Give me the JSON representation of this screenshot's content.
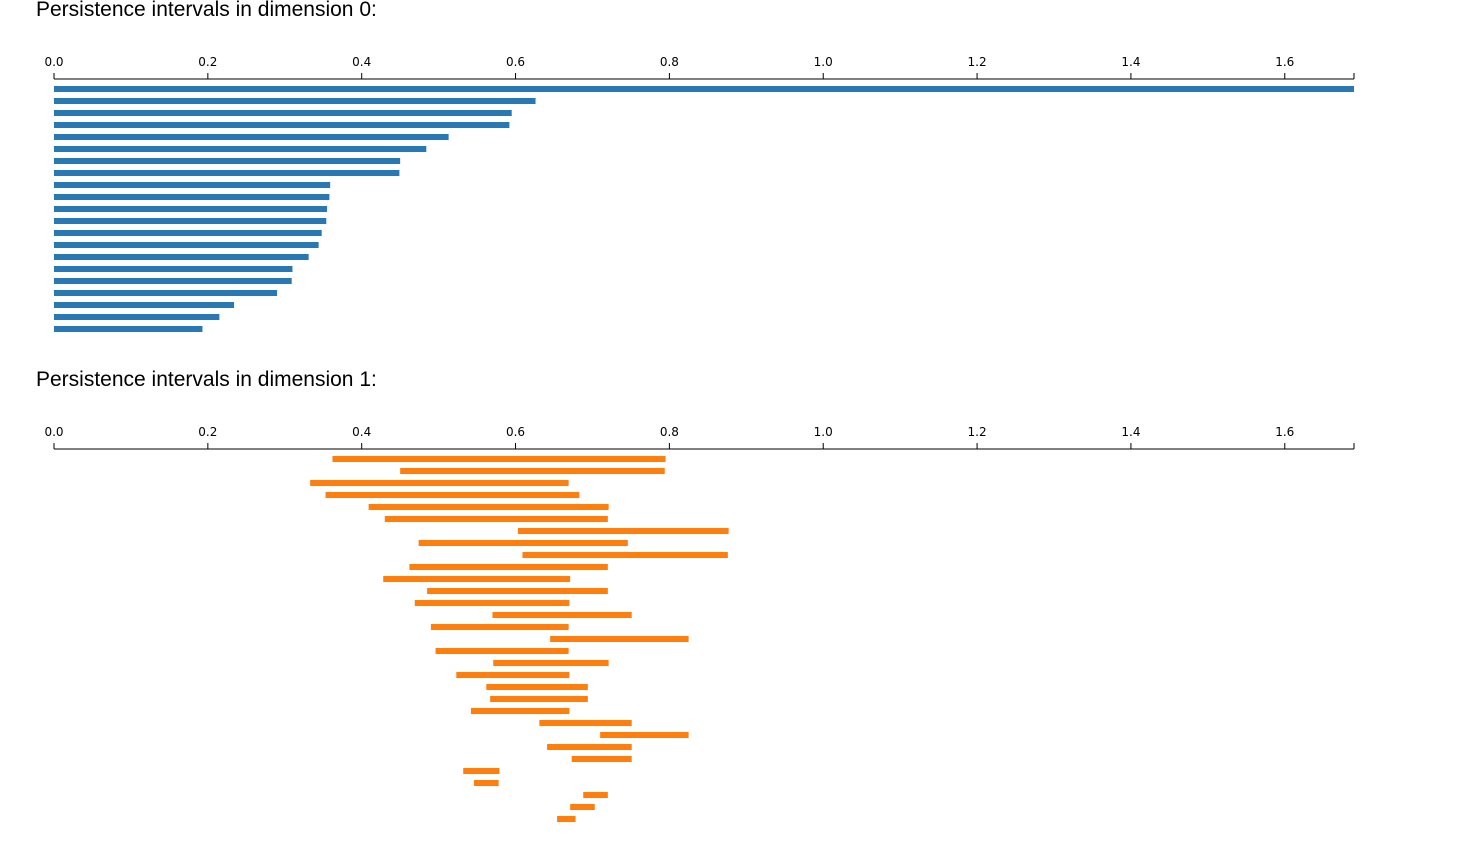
{
  "titles": {
    "dim0": "Persistence intervals in dimension 0:",
    "dim1": "Persistence intervals in dimension 1:"
  },
  "colors": {
    "dim0": "#2878b3",
    "dim1": "#ff7f0e",
    "axis": "#000000"
  },
  "chart_data": [
    {
      "type": "bar",
      "title": "Persistence intervals in dimension 0:",
      "xlim": [
        0,
        1.69
      ],
      "xticks": [
        "0.0",
        "0.2",
        "0.4",
        "0.6",
        "0.8",
        "1.0",
        "1.2",
        "1.4",
        "1.6"
      ],
      "series": [
        {
          "intervals": [
            [
              0,
              1.69
            ],
            [
              0,
              0.626
            ],
            [
              0,
              0.595
            ],
            [
              0,
              0.592
            ],
            [
              0,
              0.513
            ],
            [
              0,
              0.484
            ],
            [
              0,
              0.45
            ],
            [
              0,
              0.449
            ],
            [
              0,
              0.359
            ],
            [
              0,
              0.358
            ],
            [
              0,
              0.355
            ],
            [
              0,
              0.354
            ],
            [
              0,
              0.348
            ],
            [
              0,
              0.344
            ],
            [
              0,
              0.331
            ],
            [
              0,
              0.31
            ],
            [
              0,
              0.309
            ],
            [
              0,
              0.29
            ],
            [
              0,
              0.234
            ],
            [
              0,
              0.215
            ],
            [
              0,
              0.193
            ]
          ]
        }
      ]
    },
    {
      "type": "bar",
      "title": "Persistence intervals in dimension 1:",
      "xlim": [
        0,
        1.69
      ],
      "xticks": [
        "0.0",
        "0.2",
        "0.4",
        "0.6",
        "0.8",
        "1.0",
        "1.2",
        "1.4",
        "1.6"
      ],
      "series": [
        {
          "intervals": [
            [
              0.362,
              0.795
            ],
            [
              0.45,
              0.794
            ],
            [
              0.333,
              0.669
            ],
            [
              0.353,
              0.683
            ],
            [
              0.409,
              0.721
            ],
            [
              0.43,
              0.72
            ],
            [
              0.603,
              0.877
            ],
            [
              0.474,
              0.746
            ],
            [
              0.609,
              0.876
            ],
            [
              0.462,
              0.72
            ],
            [
              0.428,
              0.671
            ],
            [
              0.485,
              0.72
            ],
            [
              0.469,
              0.67
            ],
            [
              0.57,
              0.751
            ],
            [
              0.49,
              0.669
            ],
            [
              0.645,
              0.825
            ],
            [
              0.496,
              0.669
            ],
            [
              0.571,
              0.721
            ],
            [
              0.523,
              0.67
            ],
            [
              0.562,
              0.694
            ],
            [
              0.567,
              0.694
            ],
            [
              0.542,
              0.67
            ],
            [
              0.631,
              0.751
            ],
            [
              0.71,
              0.825
            ],
            [
              0.641,
              0.751
            ],
            [
              0.673,
              0.751
            ],
            [
              0.532,
              0.579
            ],
            [
              0.546,
              0.578
            ],
            [
              0.688,
              0.72
            ],
            [
              0.671,
              0.703
            ],
            [
              0.654,
              0.678
            ]
          ]
        }
      ]
    }
  ]
}
